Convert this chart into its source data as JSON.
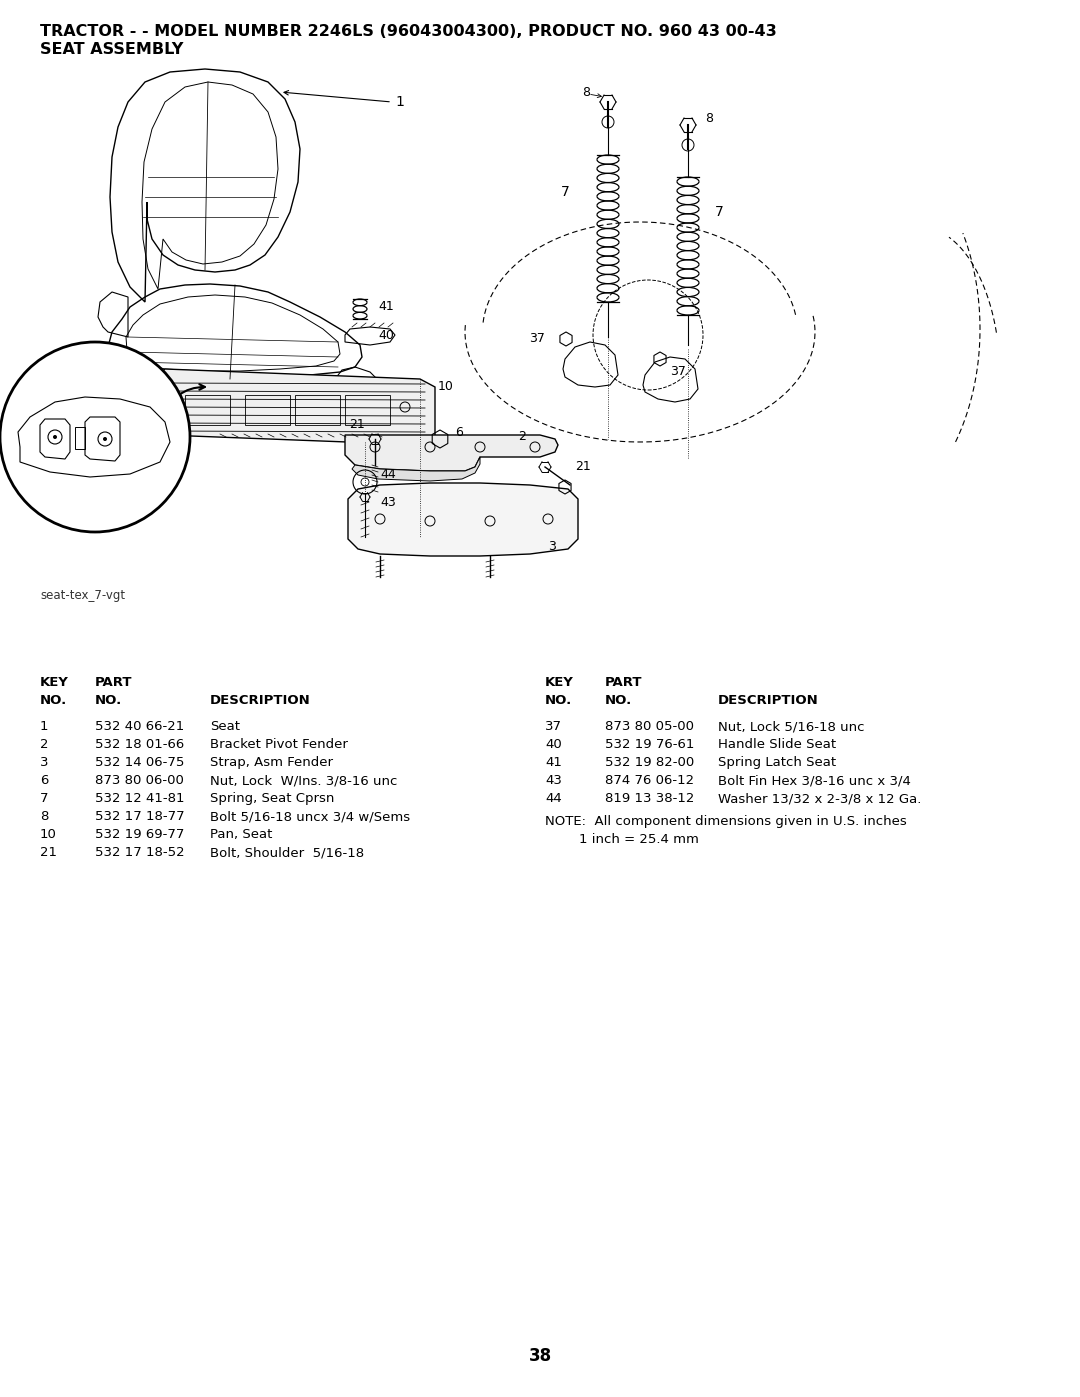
{
  "title_line1": "TRACTOR - - MODEL NUMBER 2246LS (96043004300), PRODUCT NO. 960 43 00-43",
  "title_line2": "SEAT ASSEMBLY",
  "diagram_label": "seat-tex_7-vgt",
  "page_number": "38",
  "background_color": "#ffffff",
  "text_color": "#000000",
  "left_table": {
    "rows": [
      [
        "1",
        "532 40 66-21",
        "Seat"
      ],
      [
        "2",
        "532 18 01-66",
        "Bracket Pivot Fender"
      ],
      [
        "3",
        "532 14 06-75",
        "Strap, Asm Fender"
      ],
      [
        "6",
        "873 80 06-00",
        "Nut, Lock  W/Ins. 3/8-16 unc"
      ],
      [
        "7",
        "532 12 41-81",
        "Spring, Seat Cprsn"
      ],
      [
        "8",
        "532 17 18-77",
        "Bolt 5/16-18 uncx 3/4 w/Sems"
      ],
      [
        "10",
        "532 19 69-77",
        "Pan, Seat"
      ],
      [
        "21",
        "532 17 18-52",
        "Bolt, Shoulder  5/16-18"
      ]
    ]
  },
  "right_table": {
    "rows": [
      [
        "37",
        "873 80 05-00",
        "Nut, Lock 5/16-18 unc"
      ],
      [
        "40",
        "532 19 76-61",
        "Handle Slide Seat"
      ],
      [
        "41",
        "532 19 82-00",
        "Spring Latch Seat"
      ],
      [
        "43",
        "874 76 06-12",
        "Bolt Fin Hex 3/8-16 unc x 3/4"
      ],
      [
        "44",
        "819 13 38-12",
        "Washer 13/32 x 2-3/8 x 12 Ga."
      ]
    ]
  },
  "note_line1": "NOTE:  All component dimensions given in U.S. inches",
  "note_line2": "        1 inch = 25.4 mm"
}
